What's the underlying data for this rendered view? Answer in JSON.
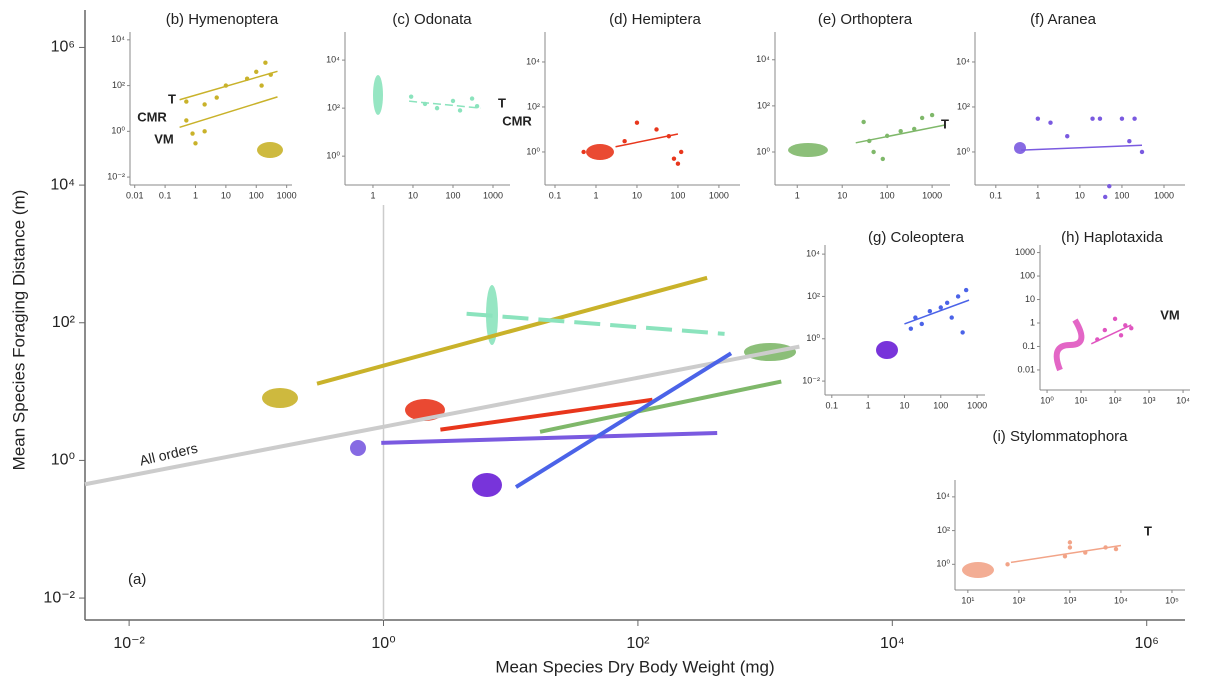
{
  "chart_data": [
    {
      "type": "line",
      "log": true,
      "xlabel": "Mean Species Dry Body Weight (mg)",
      "ylabel": "Mean Species Foraging Distance (m)",
      "annotation": "(a)",
      "xlim": [
        0.0045,
        2000000
      ],
      "ylim": [
        0.0048,
        3500000
      ],
      "xticks": [
        {
          "value": 0.01,
          "label": "10⁻²"
        },
        {
          "value": 1,
          "label": "10⁰"
        },
        {
          "value": 100,
          "label": "10²"
        },
        {
          "value": 10000,
          "label": "10⁴"
        },
        {
          "value": 1000000,
          "label": "10⁶"
        }
      ],
      "yticks": [
        {
          "value": 0.01,
          "label": "10⁻²"
        },
        {
          "value": 1,
          "label": "10⁰"
        },
        {
          "value": 100,
          "label": "10²"
        },
        {
          "value": 10000,
          "label": "10⁴"
        },
        {
          "value": 1000000,
          "label": "10⁶"
        }
      ],
      "vline": 1,
      "vline_color": "#cccccc",
      "series": [
        {
          "name": "All orders",
          "color": "#cccccc",
          "x": [
            0.0045,
            1860
          ],
          "values": [
            0.45,
            45
          ]
        },
        {
          "color": "#c9b22a",
          "x": [
            0.3,
            350
          ],
          "values": [
            13,
            450
          ]
        },
        {
          "color": "#8be3bd",
          "x": [
            4.5,
            480
          ],
          "values": [
            135,
            69
          ],
          "dash": true
        },
        {
          "color": "#e8361c",
          "x": [
            2.8,
            130
          ],
          "values": [
            2.8,
            7.6
          ]
        },
        {
          "color": "#7fb86a",
          "x": [
            17,
            1340
          ],
          "values": [
            2.6,
            14
          ]
        },
        {
          "color": "#7a5ae0",
          "x": [
            0.96,
            420
          ],
          "values": [
            1.8,
            2.5
          ]
        },
        {
          "color": "#4b63e8",
          "x": [
            11,
            540
          ],
          "values": [
            0.41,
            36
          ]
        }
      ]
    },
    {
      "type": "scatter",
      "title": "(b) Hymenoptera",
      "color": "#c9b22a",
      "xlim": [
        0.007,
        1500
      ],
      "ylim": [
        0.0045,
        22000
      ],
      "xticks": [
        0.01,
        0.1,
        1,
        10,
        100,
        1000
      ],
      "yticks": [
        {
          "value": 0.01,
          "label": "10⁻²"
        },
        {
          "value": 1,
          "label": "10⁰"
        },
        {
          "value": 100,
          "label": "10²"
        },
        {
          "value": 10000,
          "label": "10⁴"
        }
      ],
      "x": [
        0.5,
        0.8,
        2,
        5,
        10,
        50,
        100,
        150,
        200,
        300,
        0.5,
        1,
        2
      ],
      "values": [
        20,
        0.8,
        15,
        30,
        100,
        200,
        400,
        100,
        1000,
        300,
        3,
        0.3,
        1
      ],
      "lines": [
        {
          "x": [
            0.3,
            500
          ],
          "values": [
            24,
            420
          ]
        },
        {
          "x": [
            0.3,
            500
          ],
          "values": [
            1.5,
            32
          ]
        }
      ],
      "annotations": [
        "T",
        "CMR",
        "VM"
      ]
    },
    {
      "type": "scatter",
      "title": "(c) Odonata",
      "color": "#8be3bd",
      "xlim": [
        0.2,
        2660
      ],
      "ylim": [
        0.063,
        148000
      ],
      "xticks": [
        1,
        10,
        100,
        1000
      ],
      "yticks": [
        {
          "value": 1,
          "label": "10⁰"
        },
        {
          "value": 100,
          "label": "10²"
        },
        {
          "value": 10000,
          "label": "10⁴"
        }
      ],
      "x": [
        9,
        20,
        40,
        100,
        150,
        300,
        400
      ],
      "values": [
        300,
        150,
        100,
        200,
        80,
        250,
        120
      ],
      "lines": [
        {
          "x": [
            8,
            500
          ],
          "values": [
            195,
            100
          ],
          "dash": true
        }
      ],
      "annotations": [
        "T",
        "CMR"
      ]
    },
    {
      "type": "scatter",
      "title": "(d) Hemiptera",
      "color": "#e8361c",
      "xlim": [
        0.057,
        3270
      ],
      "ylim": [
        0.034,
        215000
      ],
      "xticks": [
        0.1,
        1,
        10,
        100,
        1000
      ],
      "yticks": [
        {
          "value": 1,
          "label": "10⁰"
        },
        {
          "value": 100,
          "label": "10²"
        },
        {
          "value": 10000,
          "label": "10⁴"
        }
      ],
      "x": [
        0.5,
        5,
        10,
        30,
        80,
        100,
        120,
        60
      ],
      "values": [
        1,
        3,
        20,
        10,
        0.5,
        0.3,
        1,
        5
      ],
      "lines": [
        {
          "x": [
            3,
            100
          ],
          "values": [
            1.7,
            6.3
          ]
        }
      ]
    },
    {
      "type": "scatter",
      "title": "(e) Orthoptera",
      "color": "#7fb86a",
      "xlim": [
        0.32,
        2500
      ],
      "ylim": [
        0.037,
        160000
      ],
      "xticks": [
        1,
        10,
        100,
        1000
      ],
      "yticks": [
        {
          "value": 1,
          "label": "10⁰"
        },
        {
          "value": 100,
          "label": "10²"
        },
        {
          "value": 10000,
          "label": "10⁴"
        }
      ],
      "x": [
        30,
        50,
        80,
        100,
        200,
        400,
        600,
        1000,
        40
      ],
      "values": [
        20,
        1,
        0.5,
        5,
        8,
        10,
        30,
        40,
        3
      ],
      "lines": [
        {
          "x": [
            20,
            2000
          ],
          "values": [
            2.5,
            15
          ]
        }
      ],
      "annotations": [
        "T"
      ]
    },
    {
      "type": "scatter",
      "title": "(f) Aranea",
      "color": "#7a5ae0",
      "xlim": [
        0.032,
        3160
      ],
      "ylim": [
        0.034,
        215000
      ],
      "xticks": [
        0.1,
        1,
        10,
        100,
        1000
      ],
      "yticks": [
        {
          "value": 1,
          "label": "10⁰"
        },
        {
          "value": 100,
          "label": "10²"
        },
        {
          "value": 10000,
          "label": "10⁴"
        }
      ],
      "x": [
        1,
        2,
        5,
        20,
        30,
        40,
        50,
        100,
        150,
        200,
        300
      ],
      "values": [
        30,
        20,
        5,
        30,
        30,
        0.01,
        0.03,
        30,
        3,
        30,
        1
      ],
      "lines": [
        {
          "x": [
            0.4,
            300
          ],
          "values": [
            1.2,
            2
          ]
        }
      ]
    },
    {
      "type": "scatter",
      "title": "(g) Coleoptera",
      "color": "#4b63e8",
      "xlim": [
        0.065,
        1650
      ],
      "ylim": [
        0.0022,
        27000
      ],
      "xticks": [
        0.1,
        1,
        10,
        100,
        1000
      ],
      "yticks": [
        {
          "value": 0.01,
          "label": "10⁻²"
        },
        {
          "value": 1,
          "label": "10⁰"
        },
        {
          "value": 100,
          "label": "10²"
        },
        {
          "value": 10000,
          "label": "10⁴"
        }
      ],
      "x": [
        15,
        20,
        30,
        50,
        100,
        150,
        200,
        300,
        500,
        400
      ],
      "values": [
        3,
        10,
        5,
        20,
        30,
        50,
        10,
        100,
        200,
        2
      ],
      "lines": [
        {
          "x": [
            10,
            600
          ],
          "values": [
            5,
            67
          ]
        }
      ]
    },
    {
      "type": "scatter",
      "title": "(h) Haplotaxida",
      "color": "#e055c0",
      "xlim": [
        0.62,
        16000
      ],
      "ylim": [
        0.0014,
        2100
      ],
      "xticks": [
        {
          "value": 1,
          "label": "10⁰"
        },
        {
          "value": 10,
          "label": "10¹"
        },
        {
          "value": 100,
          "label": "10²"
        },
        {
          "value": 1000,
          "label": "10³"
        },
        {
          "value": 10000,
          "label": "10⁴"
        }
      ],
      "yticks": [
        0.01,
        0.1,
        1,
        10,
        100,
        1000
      ],
      "x": [
        30,
        50,
        100,
        150,
        200,
        300
      ],
      "values": [
        0.2,
        0.5,
        1.5,
        0.3,
        0.8,
        0.6
      ],
      "lines": [
        {
          "x": [
            20,
            300
          ],
          "values": [
            0.13,
            0.83
          ]
        }
      ],
      "annotations": [
        "VM"
      ]
    },
    {
      "type": "scatter",
      "title": "(i) Stylommatophora",
      "color": "#f2a488",
      "xlim": [
        5.6,
        180000
      ],
      "ylim": [
        0.03,
        100000
      ],
      "xticks": [
        {
          "value": 10,
          "label": "10¹"
        },
        {
          "value": 100,
          "label": "10²"
        },
        {
          "value": 1000,
          "label": "10³"
        },
        {
          "value": 10000,
          "label": "10⁴"
        },
        {
          "value": 100000,
          "label": "10⁵"
        }
      ],
      "yticks": [
        {
          "value": 1,
          "label": "10⁰"
        },
        {
          "value": 100,
          "label": "10²"
        },
        {
          "value": 10000,
          "label": "10⁴"
        }
      ],
      "x": [
        60,
        800,
        1000,
        2000,
        5000,
        8000,
        1000
      ],
      "values": [
        1,
        3,
        10,
        5,
        10,
        8,
        20
      ],
      "lines": [
        {
          "x": [
            70,
            10000
          ],
          "values": [
            1.3,
            13
          ]
        }
      ],
      "annotations": [
        "T"
      ]
    }
  ]
}
